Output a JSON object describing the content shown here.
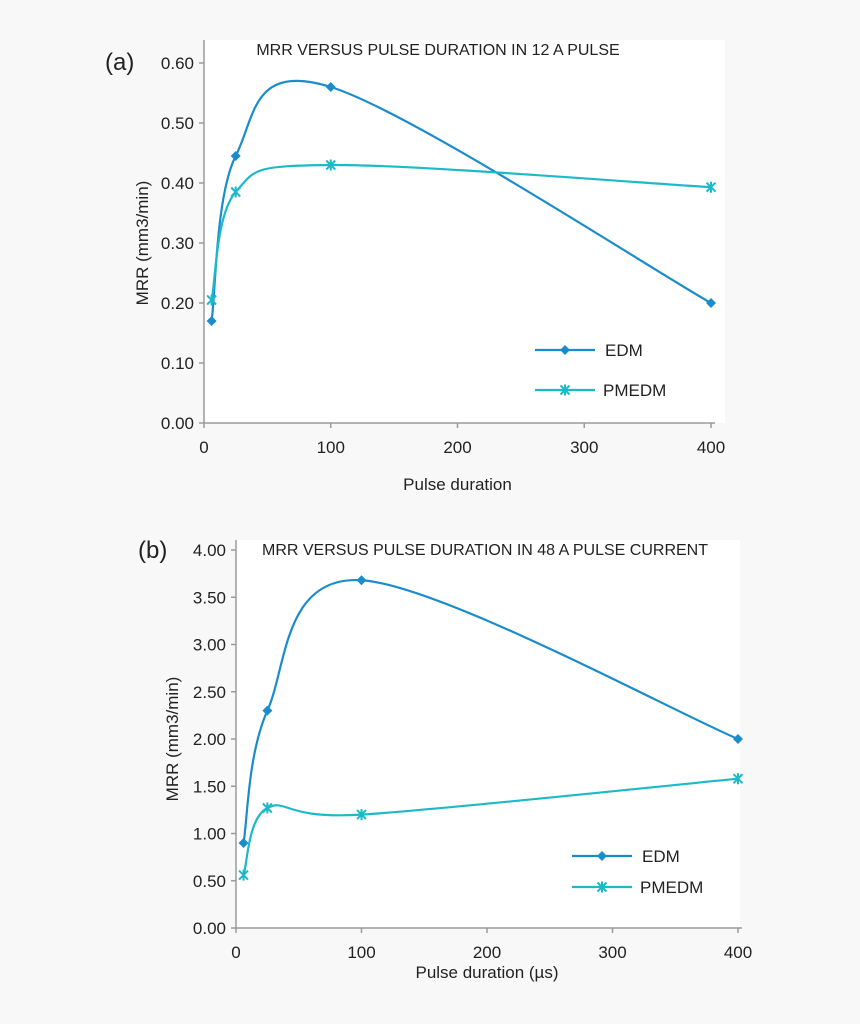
{
  "colors": {
    "EDM": "#1a8ccc",
    "PMEDM": "#1cb9c9",
    "axis": "#9a9a9a",
    "plot_bg": "#ffffff"
  },
  "chart_data": [
    {
      "panel_label": "(a)",
      "type": "line",
      "title": "MRR VERSUS PULSE DURATION IN 12 A PULSE",
      "xlabel": "Pulse duration",
      "ylabel": "MRR (mm3/min)",
      "xlim": [
        0,
        400
      ],
      "ylim": [
        0,
        0.6
      ],
      "xticks": [
        "0",
        "100",
        "200",
        "300",
        "400"
      ],
      "yticks": [
        "0.00",
        "0.10",
        "0.20",
        "0.30",
        "0.40",
        "0.50",
        "0.60"
      ],
      "grid": false,
      "legend": "center-right",
      "series": [
        {
          "name": "EDM",
          "marker": "diamond",
          "x": [
            6,
            25,
            100,
            400
          ],
          "y": [
            0.17,
            0.445,
            0.56,
            0.2
          ]
        },
        {
          "name": "PMEDM",
          "marker": "asterisk",
          "x": [
            6,
            25,
            100,
            400
          ],
          "y": [
            0.205,
            0.385,
            0.43,
            0.393
          ]
        }
      ]
    },
    {
      "panel_label": "(b)",
      "type": "line",
      "title": "MRR VERSUS PULSE DURATION IN 48 A PULSE CURRENT",
      "xlabel": "Pulse duration (µs)",
      "ylabel": "MRR (mm3/min)",
      "xlim": [
        0,
        400
      ],
      "ylim": [
        0,
        4
      ],
      "xticks": [
        "0",
        "100",
        "200",
        "300",
        "400"
      ],
      "yticks": [
        "0.00",
        "0.50",
        "1.00",
        "1.50",
        "2.00",
        "2.50",
        "3.00",
        "3.50",
        "4.00"
      ],
      "grid": false,
      "legend": "bottom-right",
      "series": [
        {
          "name": "EDM",
          "marker": "diamond",
          "x": [
            6,
            25,
            100,
            400
          ],
          "y": [
            0.9,
            2.3,
            3.68,
            2.0
          ]
        },
        {
          "name": "PMEDM",
          "marker": "asterisk",
          "x": [
            6,
            25,
            100,
            400
          ],
          "y": [
            0.56,
            1.27,
            1.2,
            1.58
          ]
        }
      ]
    }
  ]
}
